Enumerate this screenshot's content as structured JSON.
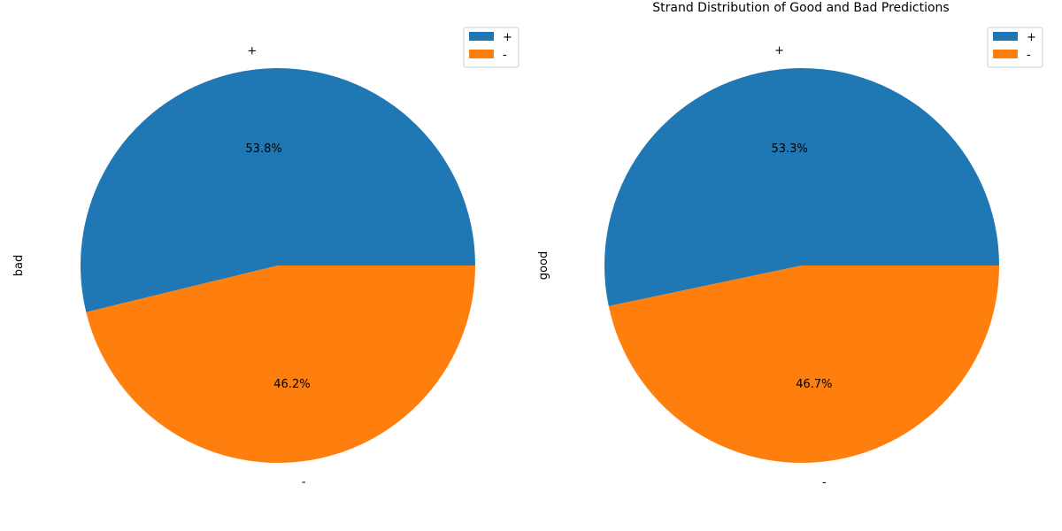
{
  "figure_title": "Strand Distribution of Good and Bad Predictions",
  "colors": {
    "plus": "#1f77b4",
    "minus": "#ff7f0e",
    "legend_border": "#cccccc"
  },
  "chart_data": [
    {
      "type": "pie",
      "ylabel": "bad",
      "labels": [
        "+",
        "-"
      ],
      "values": [
        53.8,
        46.2
      ],
      "value_labels": [
        "53.8%",
        "46.2%"
      ],
      "legend": [
        "+",
        "-"
      ],
      "legend_position": "top-right"
    },
    {
      "type": "pie",
      "ylabel": "good",
      "labels": [
        "+",
        "-"
      ],
      "values": [
        53.3,
        46.7
      ],
      "value_labels": [
        "53.3%",
        "46.7%"
      ],
      "legend": [
        "+",
        "-"
      ],
      "legend_position": "top-right"
    }
  ]
}
